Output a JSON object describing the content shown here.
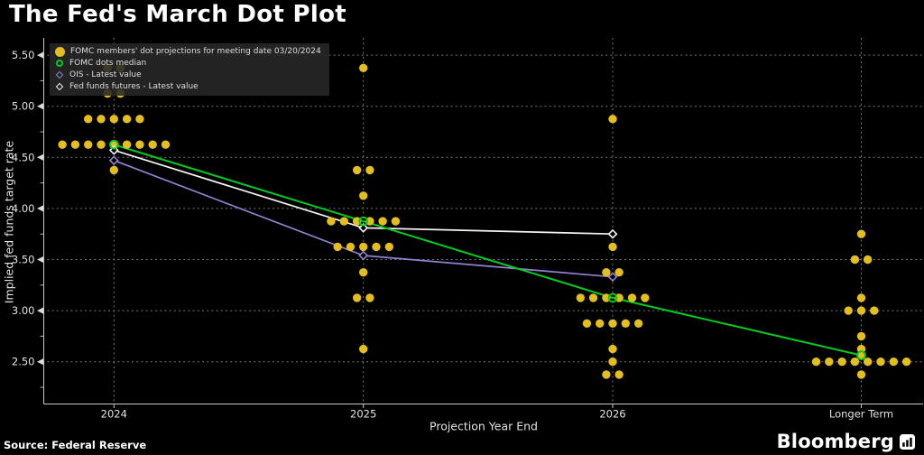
{
  "chart_data": {
    "type": "scatter",
    "title": "The Fed's March Dot Plot",
    "xlabel": "Projection Year End",
    "ylabel": "Implied fed funds target rate",
    "categories": [
      "2024",
      "2025",
      "2026",
      "Longer Term"
    ],
    "ylim": [
      2.09,
      5.67
    ],
    "yticks": [
      {
        "value": 5.5,
        "label": "5.50"
      },
      {
        "value": 5.0,
        "label": "5.00"
      },
      {
        "value": 4.5,
        "label": "4.50"
      },
      {
        "value": 4.0,
        "label": "4.00"
      },
      {
        "value": 3.5,
        "label": "3.50"
      },
      {
        "value": 3.0,
        "label": "3.00"
      },
      {
        "value": 2.5,
        "label": "2.50"
      }
    ],
    "minor_ytick_values": [
      5.25,
      4.75,
      4.25,
      3.75,
      3.25,
      2.75,
      2.25
    ],
    "grid": "dashed",
    "legend_position": "top-left",
    "colors": {
      "background": "#000000",
      "grid": "#7a7a7a",
      "axis": "#c9c9c9",
      "text": "#e3e3e3"
    },
    "series": [
      {
        "name": "FOMC members' dot projections for meeting date 03/20/2024",
        "type": "dots",
        "marker": "circle-filled",
        "color": "#e4be1c",
        "dots_by_category": {
          "2024": [
            [
              5.375,
              2
            ],
            [
              5.125,
              2
            ],
            [
              4.875,
              5
            ],
            [
              4.625,
              9
            ],
            [
              4.375,
              1
            ]
          ],
          "2025": [
            [
              5.375,
              1
            ],
            [
              4.375,
              2
            ],
            [
              4.125,
              1
            ],
            [
              3.875,
              6
            ],
            [
              3.625,
              5
            ],
            [
              3.375,
              1
            ],
            [
              3.125,
              2
            ],
            [
              2.625,
              1
            ]
          ],
          "2026": [
            [
              4.875,
              1
            ],
            [
              3.625,
              1
            ],
            [
              3.375,
              2
            ],
            [
              3.125,
              6
            ],
            [
              2.875,
              5
            ],
            [
              2.625,
              1
            ],
            [
              2.5,
              1
            ],
            [
              2.375,
              2
            ]
          ],
          "Longer Term": [
            [
              3.75,
              1
            ],
            [
              3.5,
              2
            ],
            [
              3.125,
              1
            ],
            [
              3.0,
              3
            ],
            [
              2.75,
              1
            ],
            [
              2.625,
              1
            ],
            [
              2.5625,
              1
            ],
            [
              2.5,
              8
            ],
            [
              2.375,
              1
            ]
          ]
        }
      },
      {
        "name": "FOMC dots median",
        "type": "line",
        "marker": "circle-open",
        "color": "#00cb21",
        "values": [
          4.625,
          3.875,
          3.125,
          2.5625
        ]
      },
      {
        "name": "OIS - Latest value",
        "type": "line",
        "marker": "diamond-open",
        "color": "#9480d0",
        "values": [
          4.47,
          3.54,
          3.33,
          null
        ]
      },
      {
        "name": "Fed funds futures - Latest value",
        "type": "line",
        "marker": "diamond-open",
        "color": "#f5f5f5",
        "values": [
          4.57,
          3.81,
          3.75,
          null
        ]
      }
    ]
  },
  "footer": {
    "source": "Source: Federal Reserve",
    "brand": "Bloomberg"
  }
}
